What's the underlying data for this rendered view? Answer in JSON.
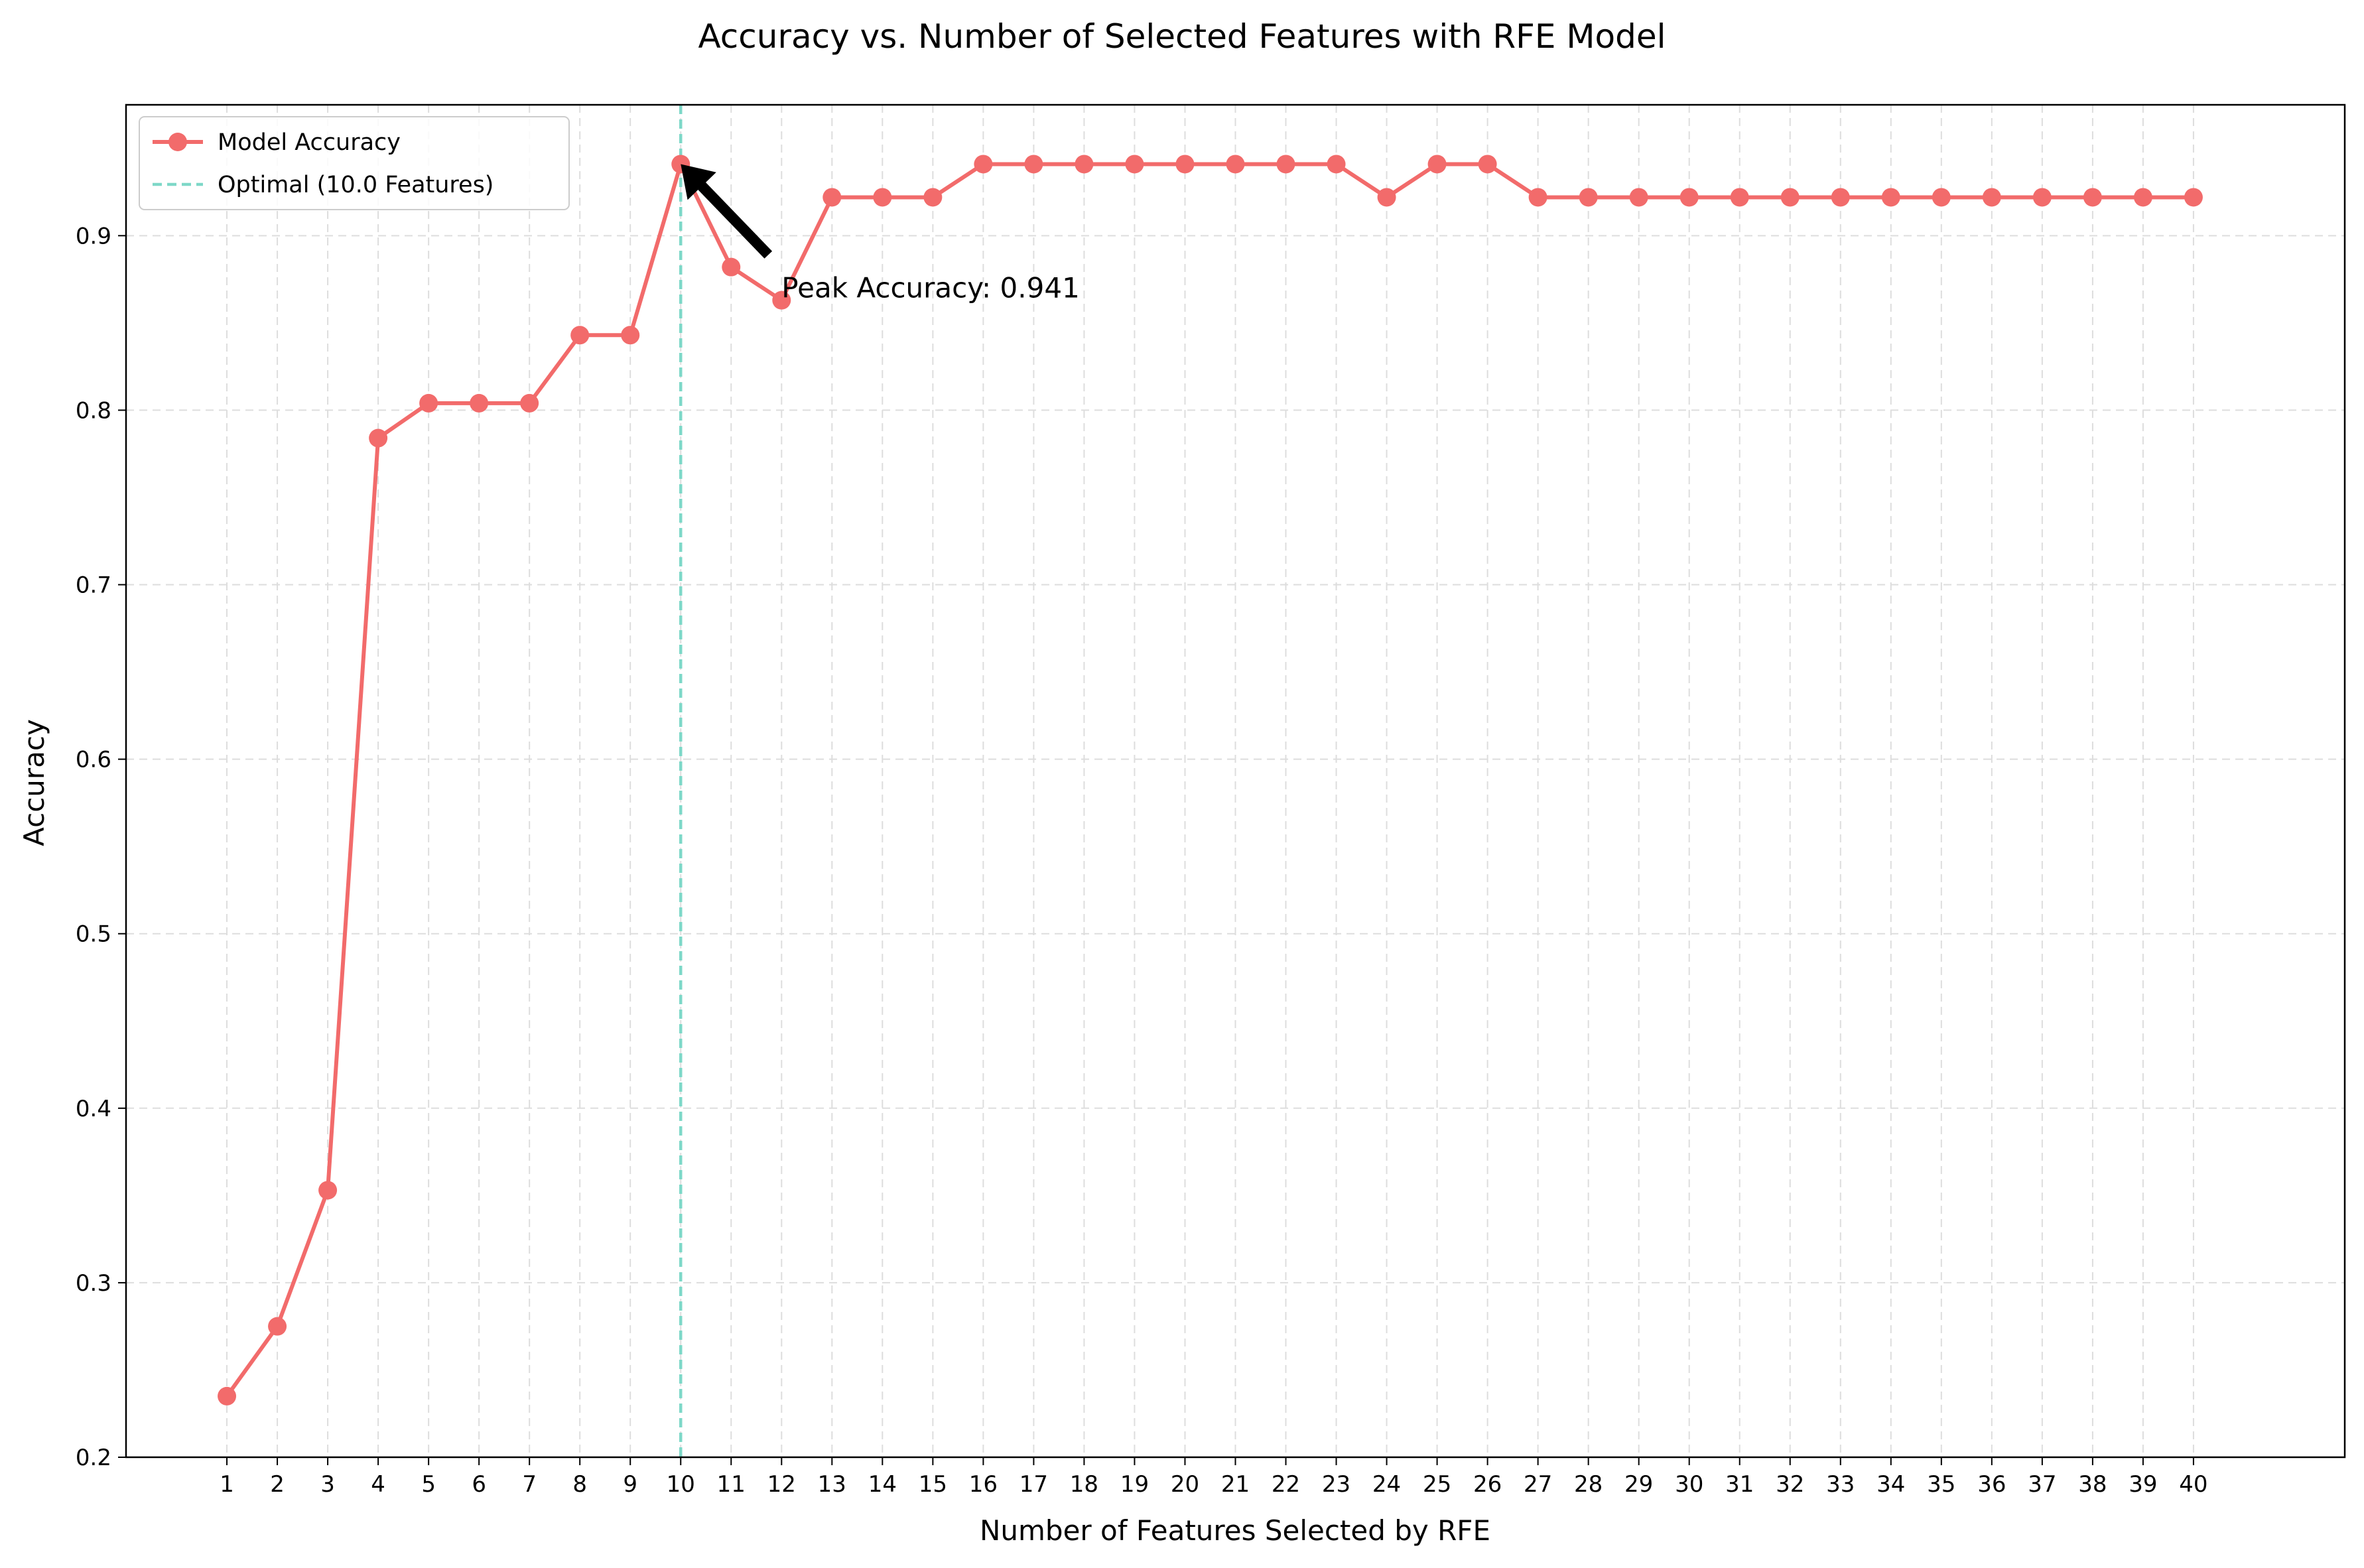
{
  "colors": {
    "series": "#F26B6B",
    "optimal": "#7ED8C8",
    "grid": "#DDDDDD",
    "axis": "#000000",
    "arrow": "#000000"
  },
  "chart_data": {
    "type": "line",
    "title": "Accuracy vs. Number of Selected Features with RFE Model",
    "xlabel": "Number of Features Selected by RFE",
    "ylabel": "Accuracy",
    "x": [
      1,
      2,
      3,
      4,
      5,
      6,
      7,
      8,
      9,
      10,
      11,
      12,
      13,
      14,
      15,
      16,
      17,
      18,
      19,
      20,
      21,
      22,
      23,
      24,
      25,
      26,
      27,
      28,
      29,
      30,
      31,
      32,
      33,
      34,
      35,
      36,
      37,
      38,
      39,
      40
    ],
    "series": [
      {
        "name": "Model Accuracy",
        "values": [
          0.235,
          0.275,
          0.353,
          0.784,
          0.804,
          0.804,
          0.804,
          0.843,
          0.843,
          0.941,
          0.882,
          0.863,
          0.922,
          0.922,
          0.922,
          0.941,
          0.941,
          0.941,
          0.941,
          0.941,
          0.941,
          0.941,
          0.941,
          0.922,
          0.941,
          0.941,
          0.922,
          0.922,
          0.922,
          0.922,
          0.922,
          0.922,
          0.922,
          0.922,
          0.922,
          0.922,
          0.922,
          0.922,
          0.922,
          0.922
        ]
      }
    ],
    "vline": {
      "x": 10,
      "label": "Optimal (10.0 Features)"
    },
    "annotation": {
      "text": "Peak Accuracy: 0.941",
      "point_x": 10,
      "point_y": 0.941,
      "text_x": 12,
      "text_y": 0.87
    },
    "xlim": [
      -1,
      43
    ],
    "ylim": [
      0.2,
      0.975
    ],
    "yticks": [
      0.2,
      0.3,
      0.4,
      0.5,
      0.6,
      0.7,
      0.8,
      0.9
    ],
    "ytick_labels": [
      "0.2",
      "0.3",
      "0.4",
      "0.5",
      "0.6",
      "0.7",
      "0.8",
      "0.9"
    ],
    "xtick_labels": [
      "1",
      "2",
      "3",
      "4",
      "5",
      "6",
      "7",
      "8",
      "9",
      "10",
      "11",
      "12",
      "13",
      "14",
      "15",
      "16",
      "17",
      "18",
      "19",
      "20",
      "21",
      "22",
      "23",
      "24",
      "25",
      "26",
      "27",
      "28",
      "29",
      "30",
      "31",
      "32",
      "33",
      "34",
      "35",
      "36",
      "37",
      "38",
      "39",
      "40"
    ],
    "grid": true,
    "legend_position": "top-left",
    "legend": [
      "Model Accuracy",
      "Optimal (10.0 Features)"
    ]
  }
}
